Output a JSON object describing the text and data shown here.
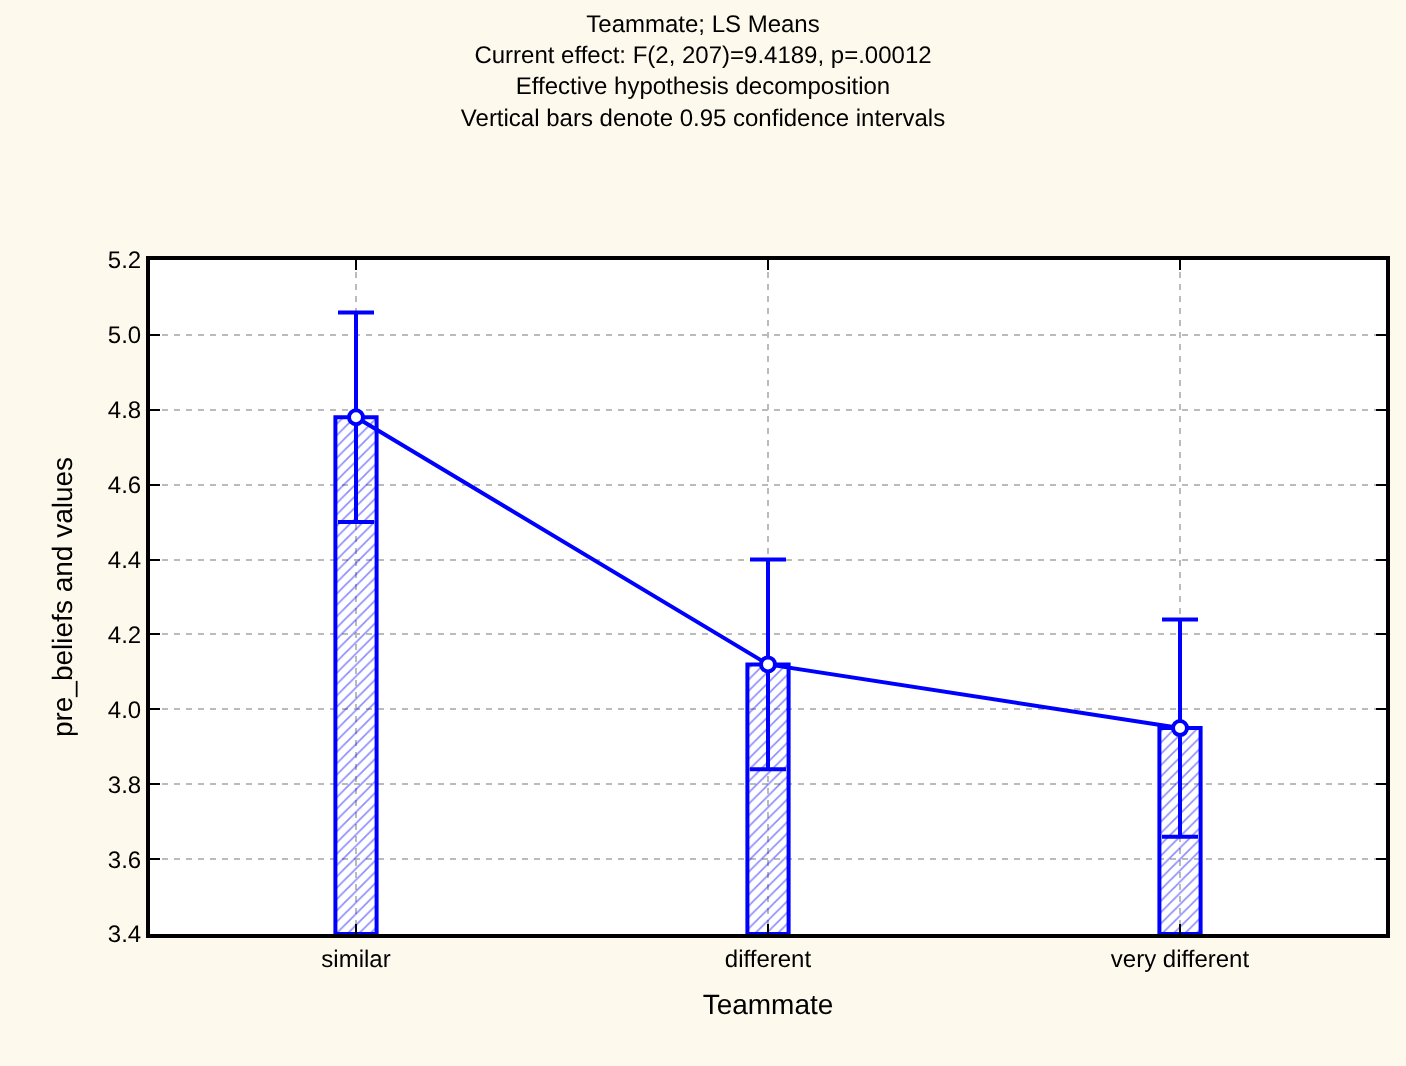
{
  "chart_data": {
    "type": "bar",
    "title": "Teammate; LS Means",
    "subtitle": "Current effect: F(2, 207)=9.4189, p=.00012\nEffective hypothesis decomposition\nVertical bars denote 0.95 confidence intervals",
    "xlabel": "Teammate",
    "ylabel": "pre_beliefs and values",
    "categories": [
      "similar",
      "different",
      "very different"
    ],
    "series": [
      {
        "color": "#0000ff",
        "values": [
          4.78,
          4.12,
          3.95
        ],
        "errors": [
          0.28,
          0.28,
          0.29
        ]
      },
      {
        "type": "line",
        "color": "#0000ff",
        "values": [
          4.78,
          4.12,
          3.95
        ]
      }
    ],
    "ylim": [
      3.4,
      5.2
    ],
    "yticks": [
      {
        "value": 3.4,
        "label": "3.4"
      },
      {
        "value": 3.6,
        "label": "3.6"
      },
      {
        "value": 3.8,
        "label": "3.8"
      },
      {
        "value": 4.0,
        "label": "4.0"
      },
      {
        "value": 4.2,
        "label": "4.2"
      },
      {
        "value": 4.4,
        "label": "4.4"
      },
      {
        "value": 4.6,
        "label": "4.6"
      },
      {
        "value": 4.8,
        "label": "4.8"
      },
      {
        "value": 5.0,
        "label": "5.0"
      },
      {
        "value": 5.2,
        "label": "5.2"
      }
    ],
    "grid": true,
    "marker": "circle"
  }
}
